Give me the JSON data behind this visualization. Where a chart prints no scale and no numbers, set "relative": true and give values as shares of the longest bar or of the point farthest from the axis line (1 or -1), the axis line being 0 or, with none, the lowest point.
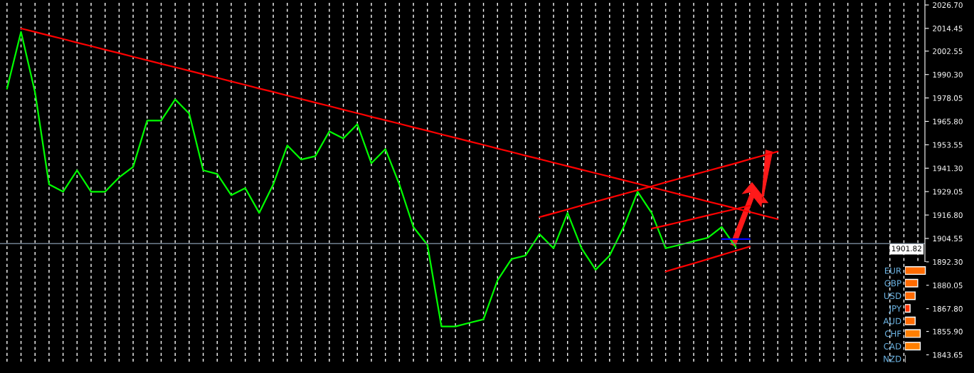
{
  "chart_data": [
    {
      "type": "line",
      "ylim": [
        1840.0,
        2029.3
      ],
      "categories": [
        null,
        null,
        null,
        null,
        null,
        null,
        null,
        null,
        null,
        null,
        null,
        null,
        null,
        null,
        null,
        null,
        null,
        null,
        null,
        null,
        null,
        null,
        null,
        null,
        null,
        null,
        null,
        null,
        null,
        null,
        null,
        null,
        null,
        null,
        null,
        null,
        null,
        null,
        null,
        null,
        null,
        null,
        null,
        null,
        null,
        null,
        null,
        null,
        null,
        null,
        null,
        null,
        null,
        null,
        null,
        null,
        null,
        null,
        null,
        null,
        null,
        null,
        null,
        null,
        null,
        null
      ],
      "yticks": [
        {
          "value": 2026.7,
          "label": "2026.70"
        },
        {
          "value": 2014.45,
          "label": "2014.45"
        },
        {
          "value": 2002.55,
          "label": "2002.55"
        },
        {
          "value": 1990.3,
          "label": "1990.30"
        },
        {
          "value": 1978.05,
          "label": "1978.05"
        },
        {
          "value": 1965.8,
          "label": "1965.80"
        },
        {
          "value": 1953.55,
          "label": "1953.55"
        },
        {
          "value": 1941.3,
          "label": "1941.30"
        },
        {
          "value": 1929.05,
          "label": "1929.05"
        },
        {
          "value": 1916.8,
          "label": "1916.80"
        },
        {
          "value": 1904.55,
          "label": "1904.55"
        },
        {
          "value": 1892.3,
          "label": "1892.30"
        },
        {
          "value": 1880.05,
          "label": "1880.05"
        },
        {
          "value": 1867.8,
          "label": "1867.80"
        },
        {
          "value": 1855.9,
          "label": "1855.90"
        },
        {
          "value": 1843.65,
          "label": "1843.65"
        }
      ],
      "tick_labels": "y",
      "grid": "x",
      "line_style": "solid",
      "ref_lines": [
        {
          "axis": "y",
          "value": 1901.82,
          "label": "1901.82",
          "color": "#708090"
        }
      ],
      "series": [
        {
          "type": "line",
          "color": "#00ff00",
          "values": [
            1982.9,
            2012.6,
            1981.0,
            1932.8,
            1929.0,
            1940.2,
            1929.0,
            1929.0,
            1936.5,
            1942.0,
            1966.2,
            1966.2,
            1977.3,
            1969.9,
            1940.2,
            1938.3,
            1927.2,
            1930.9,
            1917.9,
            1932.8,
            1953.2,
            1945.8,
            1947.6,
            1960.6,
            1956.9,
            1964.3,
            1943.9,
            1951.3,
            1932.8,
            1910.5,
            1901.2,
            1858.5,
            1858.5,
            1860.4,
            1862.2,
            1882.6,
            1893.8,
            1895.6,
            1906.8,
            1899.4,
            1917.9,
            1899.4,
            1888.2,
            1895.6,
            1910.5,
            1929.0,
            1917.9,
            1899.4,
            1901.2,
            1903.1,
            1904.9,
            1910.5,
            1900.1,
            null,
            null,
            null,
            null,
            null,
            null,
            null,
            null,
            null,
            null,
            null,
            null,
            null
          ]
        },
        {
          "type": "line",
          "color": "#ff0000",
          "values": [
            null,
            2014.4,
            2012.6,
            2010.7,
            2008.9,
            2007.0,
            2005.2,
            2003.3,
            2001.5,
            1999.6,
            1997.8,
            1995.9,
            1994.1,
            1992.3,
            1990.4,
            1988.6,
            1986.7,
            1984.9,
            1983.0,
            1981.2,
            1979.3,
            1977.5,
            1975.6,
            1973.8,
            1971.9,
            1970.1,
            1968.2,
            1966.4,
            1964.6,
            1962.7,
            1960.9,
            1959.0,
            1957.2,
            1955.3,
            1953.5,
            1951.6,
            1949.8,
            1947.9,
            1946.1,
            1944.2,
            1942.4,
            1940.5,
            1938.7,
            1936.9,
            1935.0,
            1933.2,
            1931.3,
            1929.5,
            1927.6,
            1925.8,
            1923.9,
            1922.1,
            1920.2,
            1918.4,
            1916.5,
            1914.7,
            null,
            null,
            null,
            null,
            null,
            null,
            null,
            null,
            null,
            null
          ]
        },
        {
          "type": "line",
          "color": "#ff0000",
          "values": [
            null,
            null,
            null,
            null,
            null,
            null,
            null,
            null,
            null,
            null,
            null,
            null,
            null,
            null,
            null,
            null,
            null,
            null,
            null,
            null,
            null,
            null,
            null,
            null,
            null,
            null,
            null,
            null,
            null,
            null,
            null,
            null,
            null,
            null,
            null,
            null,
            null,
            null,
            1915.7,
            1917.7,
            1919.7,
            1921.8,
            1923.8,
            1925.8,
            1927.8,
            1929.8,
            1931.8,
            1933.9,
            1935.9,
            1937.9,
            1939.9,
            1941.9,
            1943.9,
            1946.0,
            1948.0,
            1950.0,
            null,
            null,
            null,
            null,
            null,
            null,
            null,
            null,
            null,
            null
          ]
        },
        {
          "type": "line",
          "color": "#ff0000",
          "values": [
            null,
            null,
            null,
            null,
            null,
            null,
            null,
            null,
            null,
            null,
            null,
            null,
            null,
            null,
            null,
            null,
            null,
            null,
            null,
            null,
            null,
            null,
            null,
            null,
            null,
            null,
            null,
            null,
            null,
            null,
            null,
            null,
            null,
            null,
            null,
            null,
            null,
            null,
            null,
            null,
            null,
            null,
            null,
            null,
            null,
            null,
            1909.7,
            1911.4,
            1913.1,
            1914.8,
            1916.6,
            1918.3,
            1920.0,
            1921.7,
            null,
            null,
            null,
            null,
            null,
            null,
            null,
            null,
            null,
            null,
            null,
            null
          ]
        },
        {
          "type": "line",
          "color": "#ff0000",
          "values": [
            null,
            null,
            null,
            null,
            null,
            null,
            null,
            null,
            null,
            null,
            null,
            null,
            null,
            null,
            null,
            null,
            null,
            null,
            null,
            null,
            null,
            null,
            null,
            null,
            null,
            null,
            null,
            null,
            null,
            null,
            null,
            null,
            null,
            null,
            null,
            null,
            null,
            null,
            null,
            null,
            null,
            null,
            null,
            null,
            null,
            null,
            null,
            1887.2,
            1889.4,
            1891.5,
            1893.7,
            1895.9,
            1898.1,
            1900.3,
            null,
            null,
            null,
            null,
            null,
            null,
            null,
            null,
            null,
            null,
            null,
            null
          ]
        },
        {
          "type": "line",
          "color": "#0000ff",
          "values": [
            null,
            null,
            null,
            null,
            null,
            null,
            null,
            null,
            null,
            null,
            null,
            null,
            null,
            null,
            null,
            null,
            null,
            null,
            null,
            null,
            null,
            null,
            null,
            null,
            null,
            null,
            null,
            null,
            null,
            null,
            null,
            null,
            null,
            null,
            null,
            null,
            null,
            null,
            null,
            null,
            null,
            null,
            null,
            null,
            null,
            null,
            null,
            null,
            null,
            null,
            null,
            1904.2,
            1904.2,
            1904.2,
            null,
            null,
            null,
            null,
            null,
            null,
            null,
            null,
            null,
            null,
            null,
            null
          ]
        }
      ]
    },
    {
      "type": "bar",
      "orientation": "horizontal",
      "relative": true,
      "categories": [
        "EUR",
        "GBP",
        "USD",
        "JPY",
        "AUD",
        "CHF",
        "CAD",
        "NZD"
      ],
      "values": [
        1,
        0.625,
        0.5,
        0.25,
        0.5,
        0.75,
        0.75,
        null
      ],
      "colors": [
        "#ff6a00",
        "#ff6a00",
        "#ff6a00",
        "#ff3300",
        "#ff6a00",
        "#ff7f00",
        "#ff7f00",
        "#ff6a00"
      ]
    }
  ]
}
